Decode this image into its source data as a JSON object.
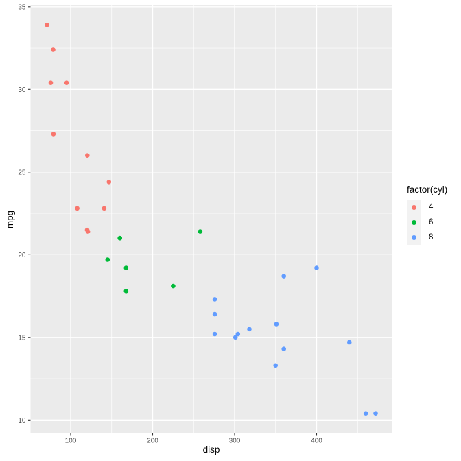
{
  "chart_data": {
    "type": "scatter",
    "title": "",
    "xlabel": "disp",
    "ylabel": "mpg",
    "xlim": [
      51.05,
      492.05
    ],
    "ylim": [
      9.225,
      35.075
    ],
    "x_major_ticks": [
      100,
      200,
      300,
      400
    ],
    "x_minor_ticks": [
      150,
      250,
      350,
      450
    ],
    "y_major_ticks": [
      10,
      15,
      20,
      25,
      30,
      35
    ],
    "y_minor_ticks": [
      12.5,
      17.5,
      22.5,
      27.5,
      32.5
    ],
    "grid": true,
    "legend": {
      "title": "factor(cyl)",
      "position": "right",
      "entries": [
        {
          "label": "4",
          "color": "#F8766D"
        },
        {
          "label": "6",
          "color": "#00BA38"
        },
        {
          "label": "8",
          "color": "#619CFF"
        }
      ]
    },
    "series": [
      {
        "name": "4",
        "color": "#F8766D",
        "points": [
          [
            108,
            22.8
          ],
          [
            146.7,
            24.4
          ],
          [
            140.8,
            22.8
          ],
          [
            78.7,
            32.4
          ],
          [
            75.7,
            30.4
          ],
          [
            71.1,
            33.9
          ],
          [
            120.1,
            21.5
          ],
          [
            79,
            27.3
          ],
          [
            120.3,
            26.0
          ],
          [
            95.1,
            30.4
          ],
          [
            121,
            21.4
          ]
        ]
      },
      {
        "name": "6",
        "color": "#00BA38",
        "points": [
          [
            160,
            21.0
          ],
          [
            160,
            21.0
          ],
          [
            258,
            21.4
          ],
          [
            225,
            18.1
          ],
          [
            167.6,
            19.2
          ],
          [
            167.6,
            17.8
          ],
          [
            145,
            19.7
          ]
        ]
      },
      {
        "name": "8",
        "color": "#619CFF",
        "points": [
          [
            360,
            18.7
          ],
          [
            360,
            14.3
          ],
          [
            275.8,
            16.4
          ],
          [
            275.8,
            17.3
          ],
          [
            275.8,
            15.2
          ],
          [
            472,
            10.4
          ],
          [
            460,
            10.4
          ],
          [
            440,
            14.7
          ],
          [
            318,
            15.5
          ],
          [
            304,
            15.2
          ],
          [
            350,
            13.3
          ],
          [
            400,
            19.2
          ],
          [
            351,
            15.8
          ],
          [
            301,
            15.0
          ]
        ]
      }
    ],
    "style": {
      "panel_bg": "#EBEBEB",
      "grid_color": "#FFFFFF",
      "tick_mark_color": "#333333",
      "tick_label_color": "#4D4D4D",
      "axis_title_color": "#000000",
      "legend_key_bg": "#F2F2F2",
      "point_radius": 3.3
    }
  }
}
